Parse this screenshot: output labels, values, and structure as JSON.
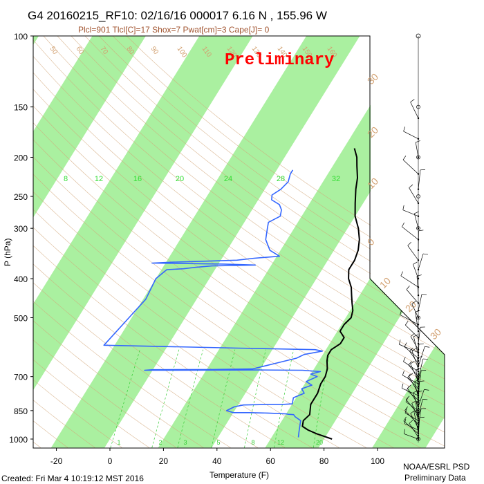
{
  "header": {
    "title": "G4 20160215_RF10: 02/16/16 000017   6.16 N , 155.96 W",
    "subtitle": "Plcl=901 Tlcl[C]=17 Shox=7 Pwat[cm]=3 Cape[J]= 0"
  },
  "watermark": "Preliminary",
  "footer": {
    "created": "Created: Fri Mar  4 10:19:12 MST 2016",
    "org": "NOAA/ESRL PSD",
    "status": "Preliminary Data"
  },
  "colors": {
    "temperature": "#000000",
    "dewpoint": "#3366ff",
    "isotherm_band": "#aaf0a0",
    "dry_adiabat": "#d2a679",
    "mixing_ratio": "#33cc33"
  },
  "chart_data": {
    "type": "line",
    "chart_kind": "skew-T log-P sounding",
    "xlabel": "Temperature (F)",
    "ylabel": "P (hPa)",
    "x_ticks": [
      "-20",
      "0",
      "20",
      "40",
      "60",
      "80",
      "100"
    ],
    "y_ticks": [
      "100",
      "150",
      "200",
      "250",
      "300",
      "400",
      "500",
      "700",
      "850",
      "1000"
    ],
    "xlim": [
      -28,
      115
    ],
    "ylim": [
      1050,
      100
    ],
    "y_scale": "log",
    "mixing_ratio_labels": [
      "8",
      "12",
      "16",
      "20",
      "24",
      "28",
      "32"
    ],
    "mixing_ratio_low_labels": [
      "1",
      "2",
      "3",
      "5",
      "8",
      "12",
      "20"
    ],
    "isotherm_labels": [
      "30",
      "20",
      "10",
      "0",
      "10",
      "20",
      "30"
    ],
    "adiabat_labels": [
      "50",
      "60",
      "70",
      "80",
      "90",
      "100",
      "110",
      "120",
      "130",
      "140",
      "150",
      "160"
    ],
    "series": [
      {
        "name": "Temperature",
        "points": [
          [
            83,
            1000
          ],
          [
            76,
            970
          ],
          [
            72,
            950
          ],
          [
            69,
            930
          ],
          [
            68,
            900
          ],
          [
            69,
            870
          ],
          [
            67,
            820
          ],
          [
            67,
            770
          ],
          [
            66,
            730
          ],
          [
            66,
            700
          ],
          [
            65,
            670
          ],
          [
            63,
            640
          ],
          [
            62,
            620
          ],
          [
            62,
            600
          ],
          [
            64,
            580
          ],
          [
            64,
            560
          ],
          [
            61,
            540
          ],
          [
            61,
            520
          ],
          [
            62,
            500
          ],
          [
            61,
            480
          ],
          [
            59,
            460
          ],
          [
            57,
            440
          ],
          [
            55,
            420
          ],
          [
            52,
            400
          ],
          [
            50,
            380
          ],
          [
            50,
            360
          ],
          [
            49,
            340
          ],
          [
            47,
            320
          ],
          [
            44,
            300
          ],
          [
            40,
            280
          ],
          [
            37,
            260
          ],
          [
            34,
            240
          ],
          [
            32,
            225
          ],
          [
            29,
            210
          ],
          [
            27,
            200
          ],
          [
            24,
            190
          ]
        ]
      },
      {
        "name": "Dewpoint",
        "points": [
          [
            70,
            990
          ],
          [
            69,
            960
          ],
          [
            67,
            900
          ],
          [
            64,
            880
          ],
          [
            63,
            870
          ],
          [
            61,
            868
          ],
          [
            60,
            866
          ],
          [
            53,
            862
          ],
          [
            46,
            860
          ],
          [
            40,
            860
          ],
          [
            37,
            850
          ],
          [
            39,
            832
          ],
          [
            42,
            823
          ],
          [
            52,
            820
          ],
          [
            57,
            820
          ],
          [
            60,
            818
          ],
          [
            59,
            790
          ],
          [
            62,
            770
          ],
          [
            60,
            750
          ],
          [
            63,
            735
          ],
          [
            60,
            720
          ],
          [
            63,
            700
          ],
          [
            60,
            690
          ],
          [
            63,
            680
          ],
          [
            56,
            675
          ],
          [
            40,
            674
          ],
          [
            -3,
            675
          ],
          [
            0,
            673
          ],
          [
            22,
            672
          ],
          [
            37,
            670
          ],
          [
            44,
            650
          ],
          [
            51,
            630
          ],
          [
            53,
            617
          ],
          [
            59,
            605
          ],
          [
            56,
            600
          ],
          [
            27,
            595
          ],
          [
            2,
            590
          ],
          [
            -24,
            585
          ],
          [
            -21,
            500
          ],
          [
            -19,
            450
          ],
          [
            -20,
            400
          ],
          [
            -18,
            380
          ],
          [
            -12,
            378
          ],
          [
            -8,
            375
          ],
          [
            -2,
            372
          ],
          [
            14,
            370
          ],
          [
            2,
            368
          ],
          [
            -25,
            366
          ],
          [
            -17,
            364
          ],
          [
            6,
            360
          ],
          [
            12,
            356
          ],
          [
            21,
            352
          ],
          [
            16,
            340
          ],
          [
            12,
            320
          ],
          [
            10,
            300
          ],
          [
            9,
            290
          ],
          [
            12,
            280
          ],
          [
            11,
            270
          ],
          [
            9,
            262
          ],
          [
            5,
            255
          ],
          [
            4,
            248
          ],
          [
            6,
            240
          ],
          [
            7,
            230
          ],
          [
            6,
            220
          ],
          [
            6,
            215
          ]
        ]
      }
    ],
    "wind_barbs": "plotted on right edge from 1000 to 100 hPa"
  }
}
